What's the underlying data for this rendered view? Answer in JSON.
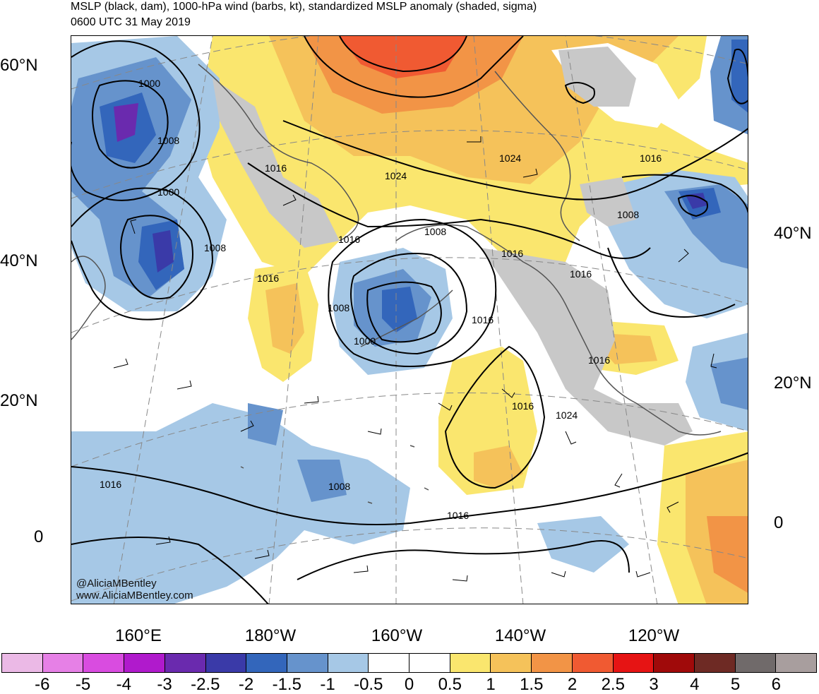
{
  "title": {
    "line1": "MSLP (black, dam), 1000-hPa wind (barbs, kt), standardized MSLP anomaly (shaded, sigma)",
    "line2": "0600 UTC 31 May 2019"
  },
  "credits": {
    "twitter": "@AliciaMBentley",
    "website": "www.AliciaMBentley.com"
  },
  "map": {
    "lat_labels_left": [
      "60°N",
      "40°N",
      "20°N",
      "0"
    ],
    "lat_labels_right": [
      "40°N",
      "20°N",
      "0"
    ],
    "lon_labels": [
      "160°E",
      "180°W",
      "160°W",
      "140°W",
      "120°W"
    ],
    "contour_labels": [
      "1000",
      "1008",
      "1000",
      "1008",
      "1016",
      "1024",
      "1016",
      "1008",
      "1016",
      "1008",
      "1000",
      "1016",
      "1024",
      "1016",
      "1008",
      "1016",
      "1016",
      "1016",
      "1024",
      "1016",
      "1008",
      "1016",
      "1016"
    ],
    "colors": {
      "coastline": "#555555",
      "contour": "#000000",
      "grid": "#888888"
    }
  },
  "colorbar": {
    "colors": [
      "#ebb9e6",
      "#e680e6",
      "#d94ce0",
      "#b01acc",
      "#6a2aae",
      "#3a3aa8",
      "#3366bb",
      "#6693cc",
      "#a6c8e6",
      "#ffffff",
      "#ffffff",
      "#fae66e",
      "#f5c25a",
      "#f29446",
      "#f05a32",
      "#e61414",
      "#a00a0a",
      "#6e2a24",
      "#706a6a",
      "#a89e9e"
    ],
    "ticks": [
      "-6",
      "-5",
      "-4",
      "-3",
      "-2.5",
      "-2",
      "-1.5",
      "-1",
      "-0.5",
      "0",
      "0.5",
      "1",
      "1.5",
      "2",
      "2.5",
      "3",
      "4",
      "5",
      "6"
    ]
  }
}
